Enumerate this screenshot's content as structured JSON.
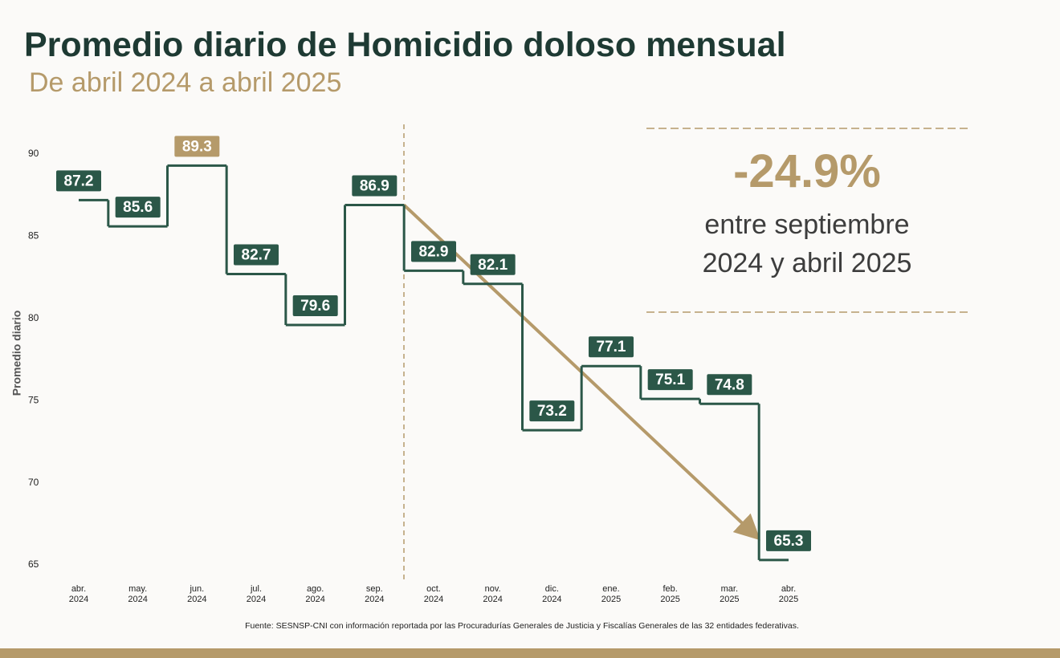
{
  "chart_data": {
    "type": "step",
    "title": "Promedio diario de Homicidio doloso mensual",
    "subtitle": "De abril 2024 a abril 2025",
    "y_label": "Promedio diario",
    "categories": [
      "abr. 2024",
      "may. 2024",
      "jun. 2024",
      "jul. 2024",
      "ago. 2024",
      "sep. 2024",
      "oct. 2024",
      "nov. 2024",
      "dic. 2024",
      "ene. 2025",
      "feb. 2025",
      "mar. 2025",
      "abr. 2025"
    ],
    "series": [
      {
        "name": "Promedio diario",
        "color": "#2b5748",
        "values": [
          87.2,
          85.6,
          89.3,
          82.7,
          79.6,
          86.9,
          82.9,
          82.1,
          73.2,
          77.1,
          75.1,
          74.8,
          65.3
        ],
        "label_colors": [
          "#2b5748",
          "#2b5748",
          "#b59a6a",
          "#2b5748",
          "#2b5748",
          "#2b5748",
          "#2b5748",
          "#2b5748",
          "#2b5748",
          "#2b5748",
          "#2b5748",
          "#2b5748",
          "#2b5748"
        ]
      }
    ],
    "ylim": [
      65,
      90
    ],
    "yticks": [
      65,
      70,
      75,
      80,
      85,
      90
    ],
    "grid": false,
    "annotation": {
      "value": "-24.9%",
      "text": "entre septiembre 2024 y abril 2025",
      "color": "#b59a6a"
    },
    "source": "Fuente: SESNSP-CNI con información reportada por las Procuradurías Generales de Justicia y Fiscalías Generales de las 32 entidades federativas."
  }
}
